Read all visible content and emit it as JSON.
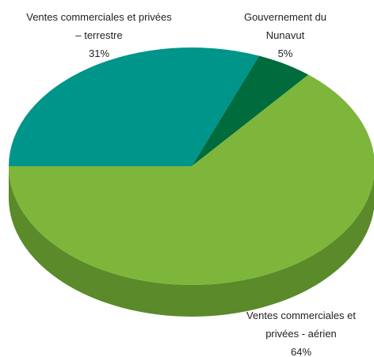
{
  "chart_data": {
    "type": "pie",
    "categories": [
      "Ventes commerciales et privées – terrestre",
      "Gouvernement du Nunavut",
      "Ventes commerciales et privées - aérien"
    ],
    "values": [
      31,
      5,
      64
    ],
    "value_labels": [
      "31%",
      "5%",
      "64%"
    ],
    "colors": [
      "#00958a",
      "#006b3d",
      "#7db63a"
    ],
    "side_colors": [
      "#007a70",
      "#00532f",
      "#5a8a2a"
    ]
  }
}
